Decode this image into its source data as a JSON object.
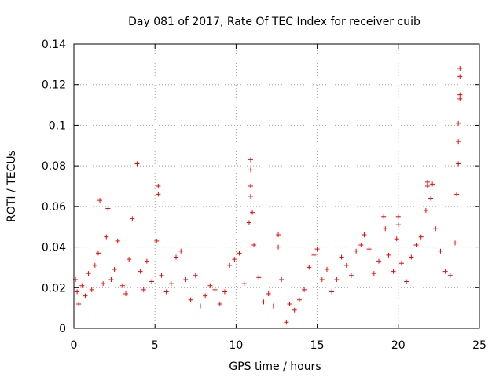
{
  "chart_data": {
    "type": "scatter",
    "title": "Day 081 of 2017, Rate Of TEC Index for receiver cuib",
    "xlabel": "GPS time / hours",
    "ylabel": "ROTI / TECUs",
    "xlim": [
      0,
      25
    ],
    "ylim": [
      0,
      0.14
    ],
    "xticks": [
      0,
      5,
      10,
      15,
      20,
      25
    ],
    "xtick_labels": [
      "0",
      "5",
      "10",
      "15",
      "20",
      "25"
    ],
    "yticks": [
      0,
      0.02,
      0.04,
      0.06,
      0.08,
      0.1,
      0.12,
      0.14
    ],
    "ytick_labels": [
      "0",
      "0.02",
      "0.04",
      "0.06",
      "0.08",
      "0.1",
      "0.12",
      "0.14"
    ],
    "grid": true,
    "marker": "+",
    "color": "#ff0000",
    "series": [
      {
        "name": "ROTI",
        "points": [
          [
            0.1,
            0.024
          ],
          [
            0.2,
            0.018
          ],
          [
            0.3,
            0.012
          ],
          [
            0.5,
            0.021
          ],
          [
            0.7,
            0.016
          ],
          [
            0.9,
            0.027
          ],
          [
            1.1,
            0.019
          ],
          [
            1.3,
            0.031
          ],
          [
            1.5,
            0.037
          ],
          [
            1.6,
            0.063
          ],
          [
            1.8,
            0.022
          ],
          [
            2.0,
            0.045
          ],
          [
            2.1,
            0.059
          ],
          [
            2.3,
            0.024
          ],
          [
            2.5,
            0.029
          ],
          [
            2.7,
            0.043
          ],
          [
            3.0,
            0.021
          ],
          [
            3.2,
            0.017
          ],
          [
            3.4,
            0.034
          ],
          [
            3.6,
            0.054
          ],
          [
            3.9,
            0.081
          ],
          [
            4.1,
            0.028
          ],
          [
            4.3,
            0.019
          ],
          [
            4.5,
            0.033
          ],
          [
            4.8,
            0.023
          ],
          [
            5.1,
            0.043
          ],
          [
            5.2,
            0.066
          ],
          [
            5.2,
            0.07
          ],
          [
            5.4,
            0.026
          ],
          [
            5.7,
            0.018
          ],
          [
            6.0,
            0.022
          ],
          [
            6.3,
            0.035
          ],
          [
            6.6,
            0.038
          ],
          [
            6.9,
            0.024
          ],
          [
            7.2,
            0.014
          ],
          [
            7.5,
            0.026
          ],
          [
            7.8,
            0.011
          ],
          [
            8.1,
            0.016
          ],
          [
            8.4,
            0.021
          ],
          [
            8.7,
            0.019
          ],
          [
            9.0,
            0.012
          ],
          [
            9.3,
            0.018
          ],
          [
            9.6,
            0.031
          ],
          [
            9.9,
            0.034
          ],
          [
            10.2,
            0.037
          ],
          [
            10.5,
            0.022
          ],
          [
            10.8,
            0.052
          ],
          [
            10.9,
            0.065
          ],
          [
            10.9,
            0.07
          ],
          [
            10.9,
            0.078
          ],
          [
            10.9,
            0.083
          ],
          [
            11.0,
            0.057
          ],
          [
            11.1,
            0.041
          ],
          [
            11.4,
            0.025
          ],
          [
            11.7,
            0.013
          ],
          [
            12.0,
            0.017
          ],
          [
            12.3,
            0.011
          ],
          [
            12.6,
            0.046
          ],
          [
            12.6,
            0.04
          ],
          [
            12.8,
            0.024
          ],
          [
            13.1,
            0.003
          ],
          [
            13.3,
            0.012
          ],
          [
            13.6,
            0.009
          ],
          [
            13.9,
            0.014
          ],
          [
            14.2,
            0.019
          ],
          [
            14.5,
            0.03
          ],
          [
            14.8,
            0.036
          ],
          [
            15.0,
            0.039
          ],
          [
            15.3,
            0.024
          ],
          [
            15.6,
            0.029
          ],
          [
            15.9,
            0.018
          ],
          [
            16.2,
            0.024
          ],
          [
            16.5,
            0.035
          ],
          [
            16.8,
            0.031
          ],
          [
            17.1,
            0.026
          ],
          [
            17.4,
            0.038
          ],
          [
            17.7,
            0.041
          ],
          [
            17.9,
            0.046
          ],
          [
            18.2,
            0.039
          ],
          [
            18.5,
            0.027
          ],
          [
            18.8,
            0.033
          ],
          [
            19.1,
            0.055
          ],
          [
            19.2,
            0.049
          ],
          [
            19.4,
            0.036
          ],
          [
            19.7,
            0.028
          ],
          [
            19.9,
            0.044
          ],
          [
            20.0,
            0.055
          ],
          [
            20.0,
            0.051
          ],
          [
            20.2,
            0.032
          ],
          [
            20.5,
            0.023
          ],
          [
            20.8,
            0.035
          ],
          [
            21.1,
            0.041
          ],
          [
            21.4,
            0.045
          ],
          [
            21.7,
            0.058
          ],
          [
            21.8,
            0.07
          ],
          [
            21.8,
            0.072
          ],
          [
            22.0,
            0.064
          ],
          [
            22.1,
            0.071
          ],
          [
            22.3,
            0.049
          ],
          [
            22.6,
            0.038
          ],
          [
            22.9,
            0.028
          ],
          [
            23.2,
            0.026
          ],
          [
            23.5,
            0.042
          ],
          [
            23.6,
            0.066
          ],
          [
            23.7,
            0.081
          ],
          [
            23.7,
            0.092
          ],
          [
            23.7,
            0.101
          ],
          [
            23.8,
            0.113
          ],
          [
            23.8,
            0.115
          ],
          [
            23.8,
            0.124
          ],
          [
            23.8,
            0.128
          ]
        ]
      }
    ]
  }
}
